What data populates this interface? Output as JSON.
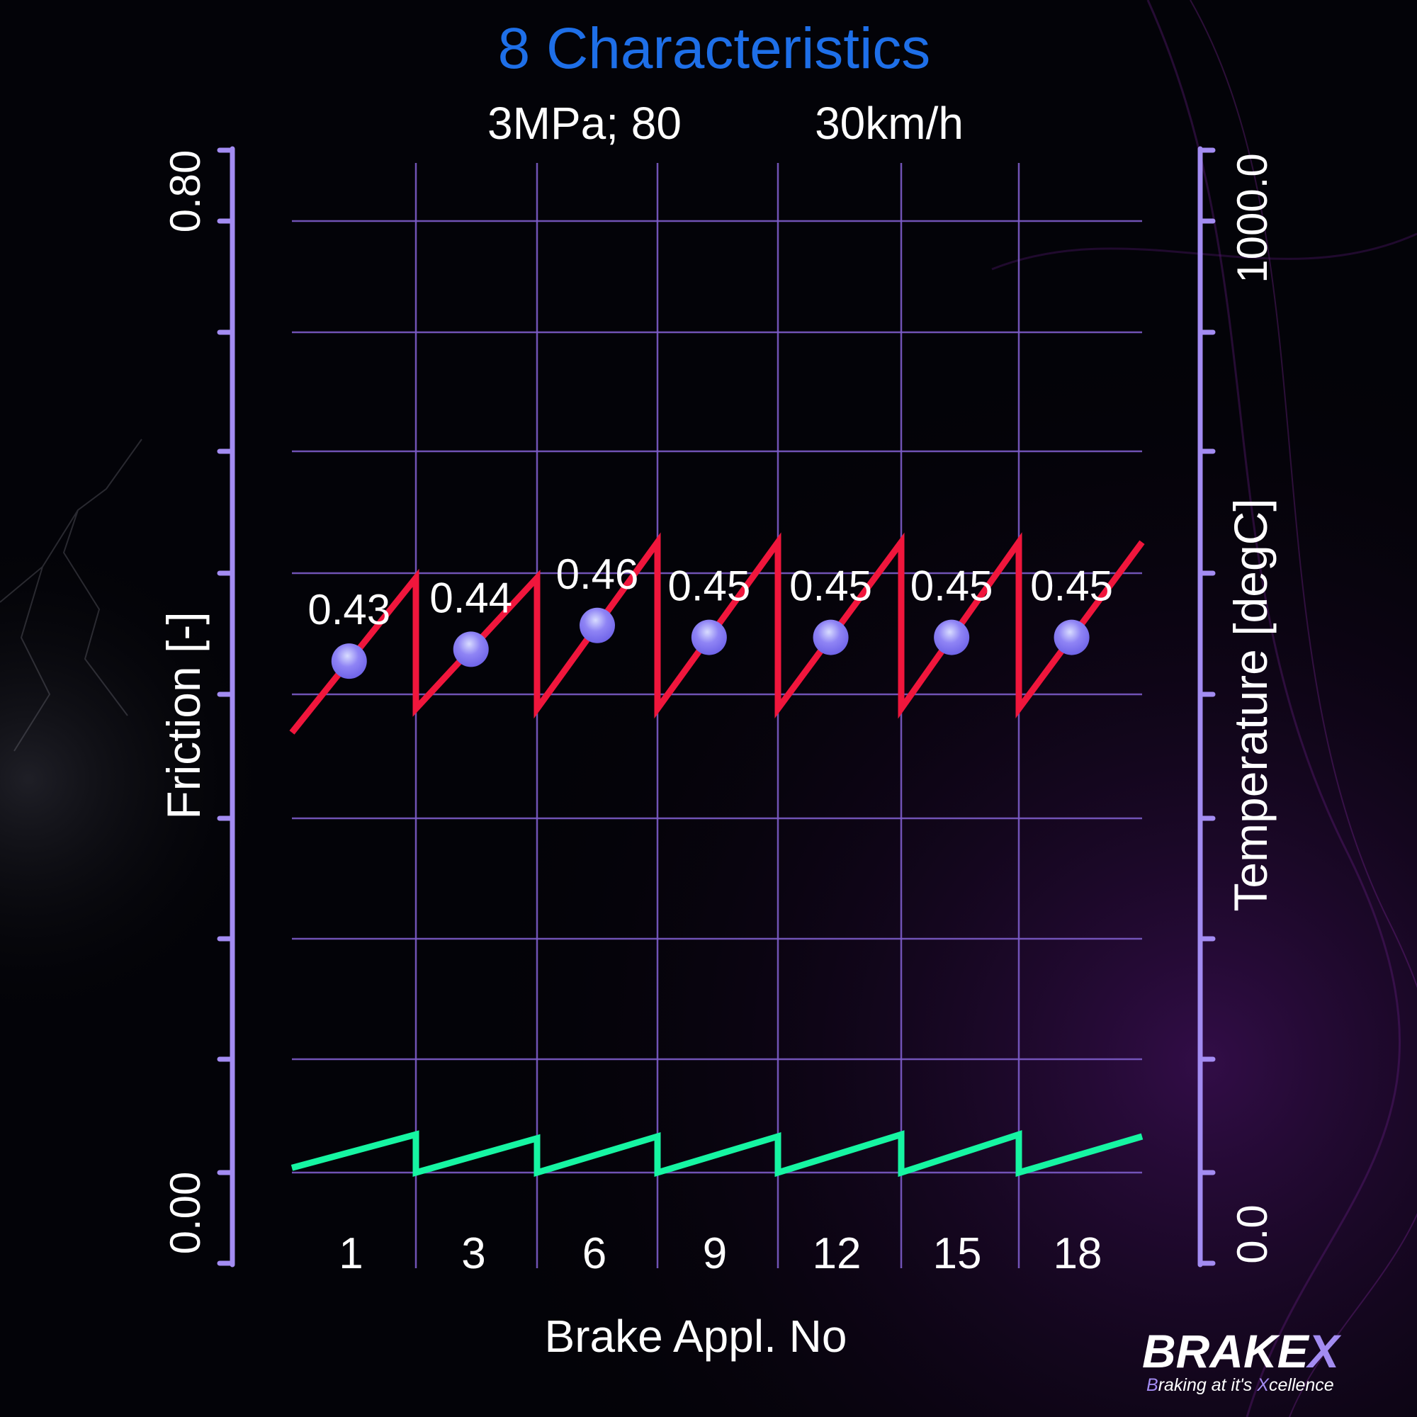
{
  "colors": {
    "background": "#030308",
    "title": "#1e6fe8",
    "text": "#ffffff",
    "axis": "#a38cf2",
    "grid": "#7c5cc8",
    "friction_line": "#f0163c",
    "temperature_line": "#16f5a2",
    "marker": "#8f84f5"
  },
  "chart_data": {
    "type": "line",
    "title": "8 Characteristics",
    "subtitle_left": "3MPa; 80",
    "subtitle_right": "30km/h",
    "xlabel": "Brake Appl. No",
    "ylabel_left": "Friction [-]",
    "ylabel_right": "Temperature [degC]",
    "y_left_range": [
      0.0,
      0.8
    ],
    "y_right_range": [
      0.0,
      1000.0
    ],
    "y_left_ticks": [
      "0.00",
      "0.80"
    ],
    "y_right_ticks": [
      "0.0",
      "1000.0"
    ],
    "x_tick_labels": [
      "1",
      "3",
      "6",
      "9",
      "12",
      "15",
      "18"
    ],
    "grid": true,
    "groups": [
      {
        "label": "1",
        "mean_friction_label": "0.43",
        "mean_friction": 0.43,
        "friction_start": 0.37,
        "friction_end": 0.5,
        "temp_start": 5,
        "temp_end": 40
      },
      {
        "label": "3",
        "mean_friction_label": "0.44",
        "mean_friction": 0.44,
        "friction_start": 0.39,
        "friction_end": 0.5,
        "temp_start": 0,
        "temp_end": 36
      },
      {
        "label": "6",
        "mean_friction_label": "0.46",
        "mean_friction": 0.46,
        "friction_start": 0.39,
        "friction_end": 0.53,
        "temp_start": 0,
        "temp_end": 38
      },
      {
        "label": "9",
        "mean_friction_label": "0.45",
        "mean_friction": 0.45,
        "friction_start": 0.39,
        "friction_end": 0.53,
        "temp_start": 0,
        "temp_end": 38
      },
      {
        "label": "12",
        "mean_friction_label": "0.45",
        "mean_friction": 0.45,
        "friction_start": 0.39,
        "friction_end": 0.53,
        "temp_start": 0,
        "temp_end": 40
      },
      {
        "label": "15",
        "mean_friction_label": "0.45",
        "mean_friction": 0.45,
        "friction_start": 0.39,
        "friction_end": 0.53,
        "temp_start": 0,
        "temp_end": 40
      },
      {
        "label": "18",
        "mean_friction_label": "0.45",
        "mean_friction": 0.45,
        "friction_start": 0.39,
        "friction_end": 0.53,
        "temp_start": 0,
        "temp_end": 38
      }
    ]
  },
  "logo": {
    "name": "BRAKE",
    "mark": "X",
    "tagline_parts": [
      "B",
      "raking at it's ",
      "X",
      "cellence"
    ]
  }
}
